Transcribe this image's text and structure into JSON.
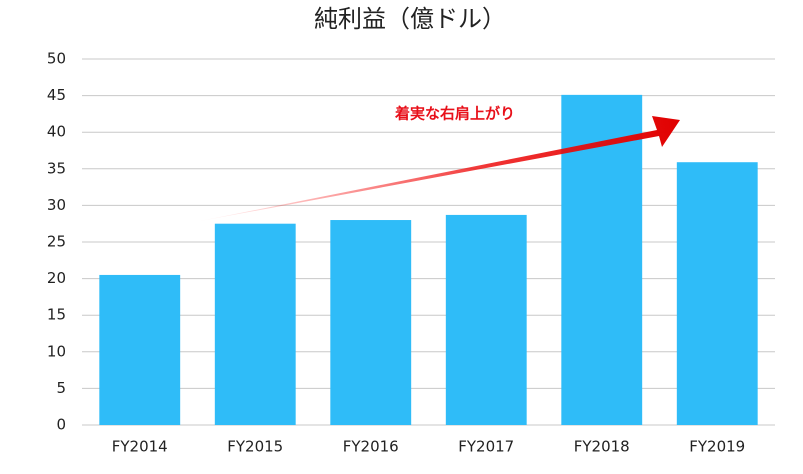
{
  "chart_data": {
    "type": "bar",
    "title": "純利益（億ドル）",
    "categories": [
      "FY2014",
      "FY2015",
      "FY2016",
      "FY2017",
      "FY2018",
      "FY2019"
    ],
    "values": [
      20.5,
      27.5,
      28.0,
      28.7,
      45.1,
      35.9
    ],
    "color": "#2fbcf8",
    "ylim": [
      0,
      50
    ],
    "yticks": [
      0,
      5,
      10,
      15,
      20,
      25,
      30,
      35,
      40,
      45,
      50
    ],
    "grid": true,
    "annotation": "着実な右肩上がり"
  }
}
